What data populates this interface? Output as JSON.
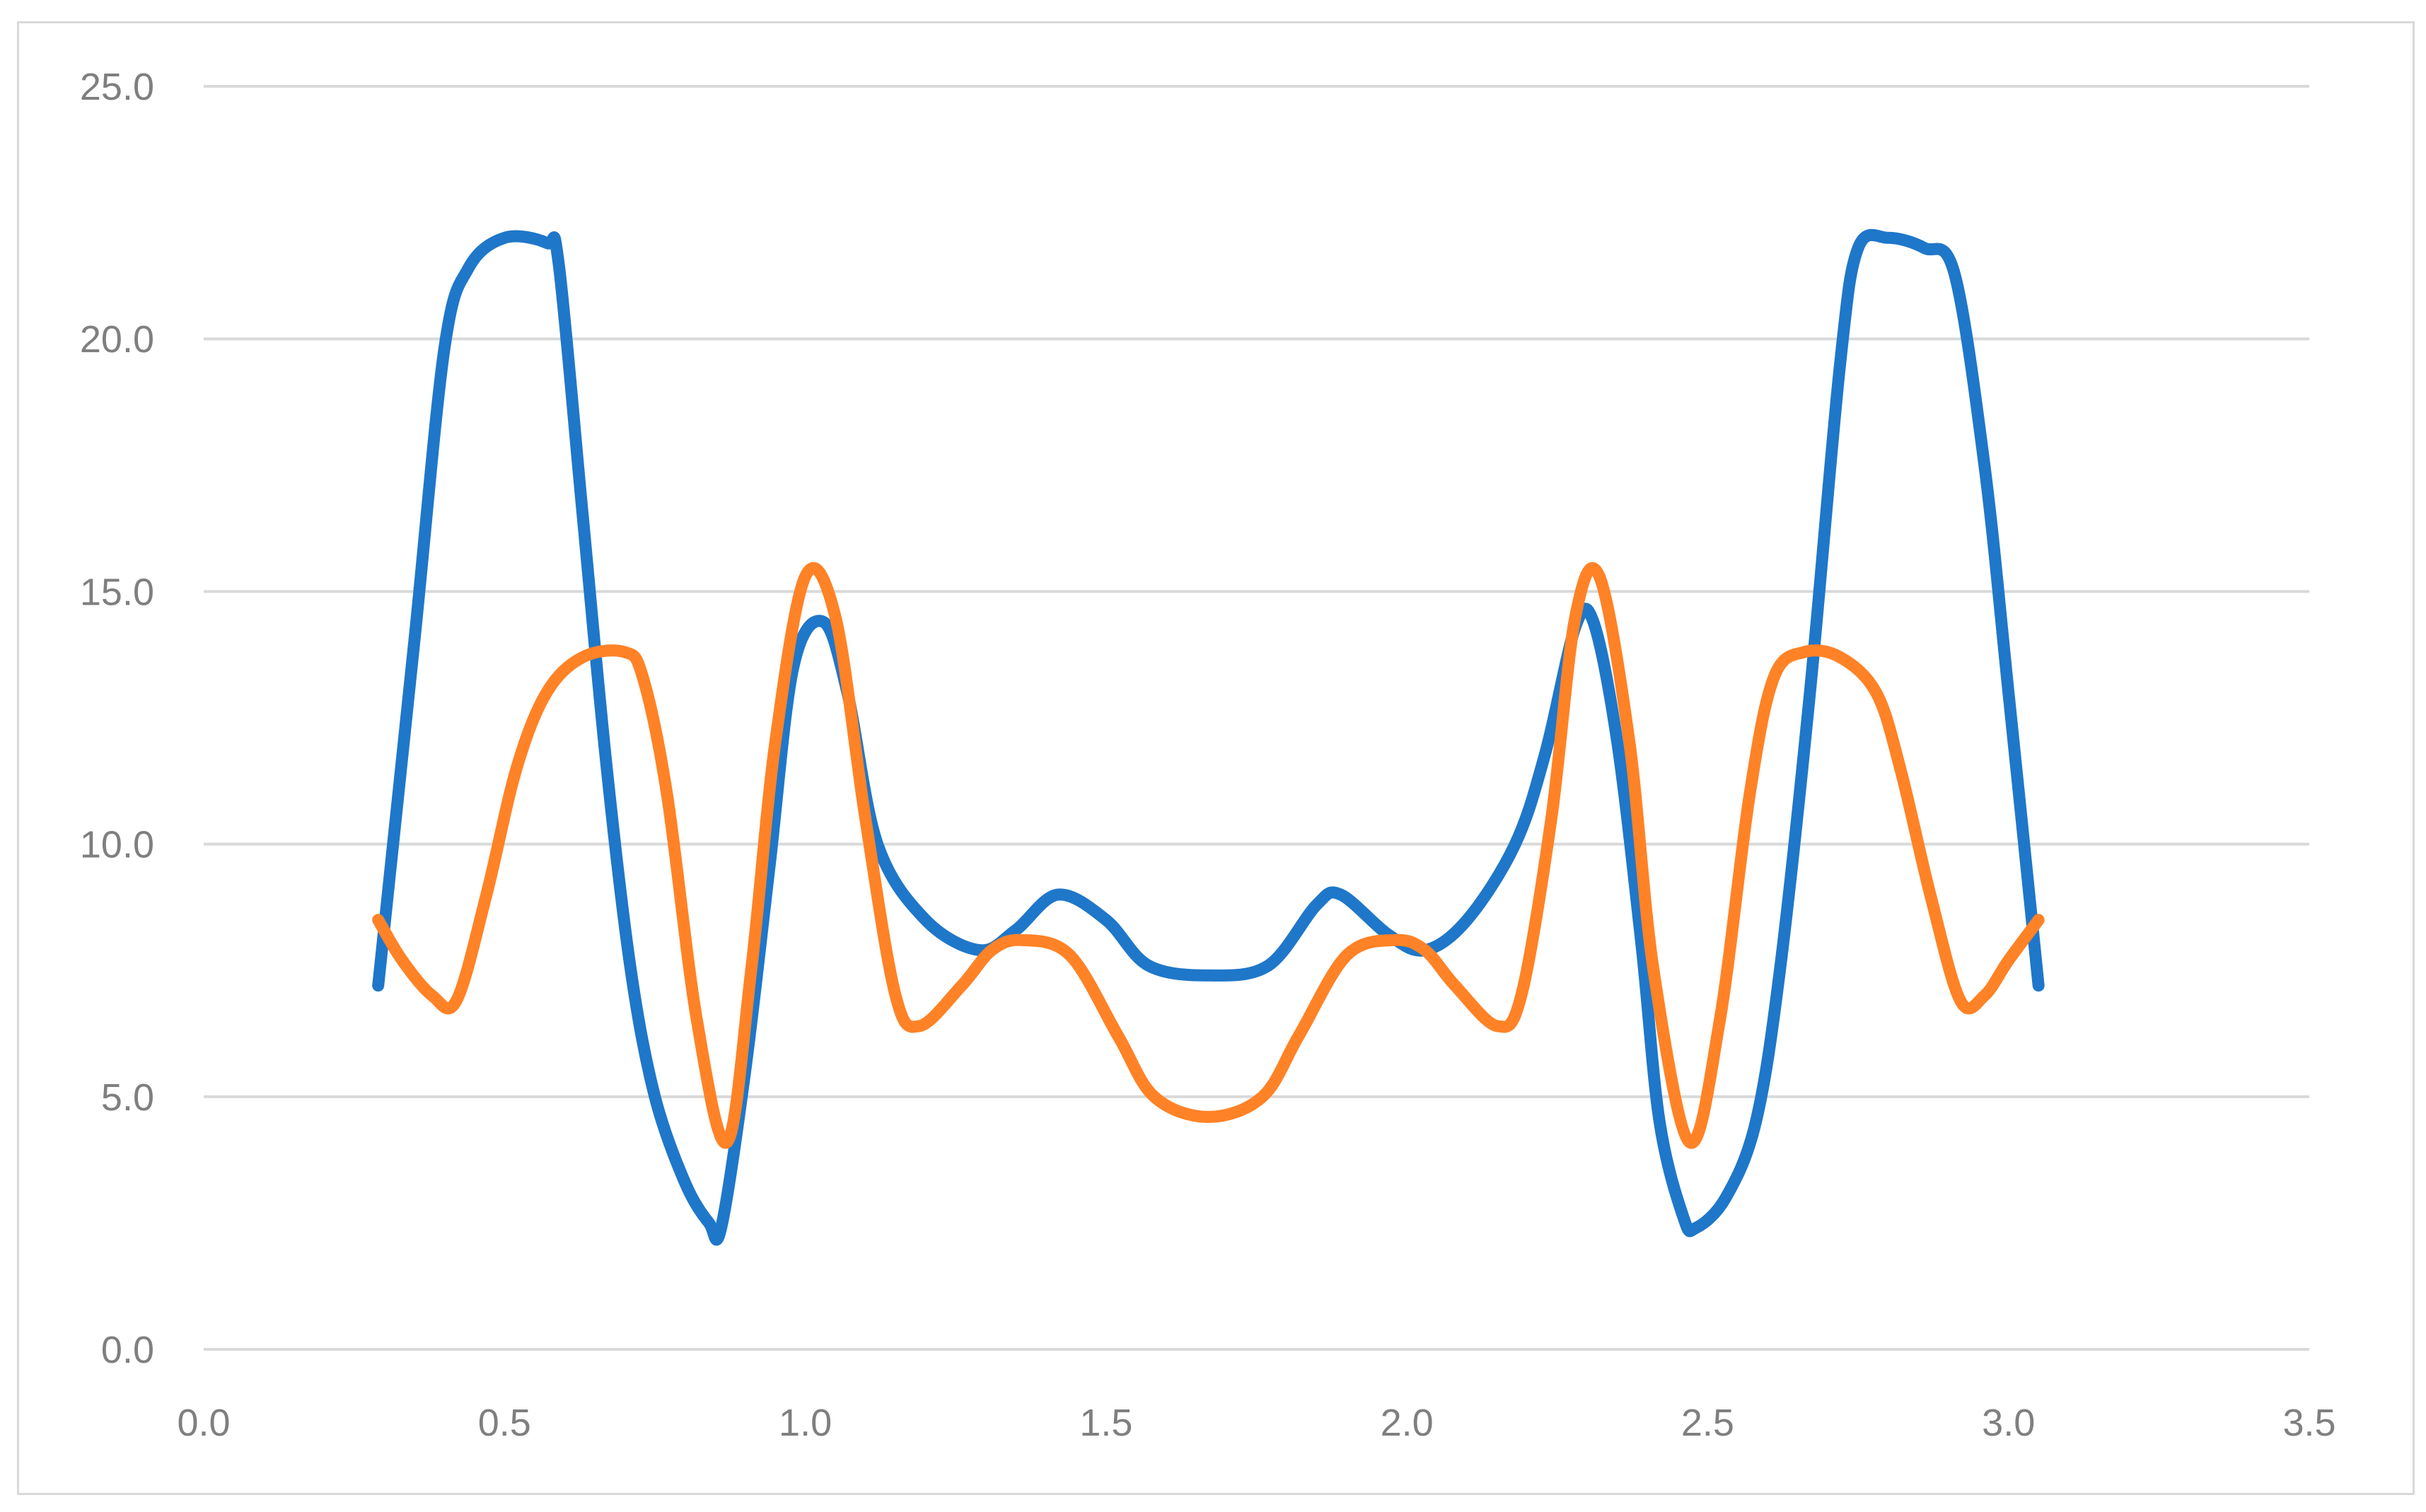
{
  "chart_data": {
    "type": "line",
    "title": "",
    "xlabel": "",
    "ylabel": "",
    "xlim": [
      0,
      3.5
    ],
    "ylim": [
      0,
      25
    ],
    "x_ticks": [
      "0.0",
      "0.5",
      "1.0",
      "1.5",
      "2.0",
      "2.5",
      "3.0",
      "3.5"
    ],
    "y_ticks": [
      "0.0",
      "5.0",
      "10.0",
      "15.0",
      "20.0",
      "25.0"
    ],
    "grid": "horizontal",
    "legend": "none",
    "series": [
      {
        "color": "#1f77c9",
        "points": [
          [
            0.29,
            7.2
          ],
          [
            0.35,
            14.0
          ],
          [
            0.4,
            19.8
          ],
          [
            0.44,
            21.4
          ],
          [
            0.5,
            22.0
          ],
          [
            0.57,
            21.9
          ],
          [
            0.59,
            21.5
          ],
          [
            0.63,
            16.5
          ],
          [
            0.67,
            11.5
          ],
          [
            0.71,
            7.5
          ],
          [
            0.75,
            5.0
          ],
          [
            0.8,
            3.3
          ],
          [
            0.84,
            2.5
          ],
          [
            0.86,
            2.4
          ],
          [
            0.9,
            5.5
          ],
          [
            0.94,
            9.5
          ],
          [
            0.98,
            13.5
          ],
          [
            1.03,
            14.4
          ],
          [
            1.07,
            13.0
          ],
          [
            1.12,
            10.0
          ],
          [
            1.2,
            8.5
          ],
          [
            1.29,
            7.9
          ],
          [
            1.35,
            8.3
          ],
          [
            1.42,
            9.0
          ],
          [
            1.5,
            8.5
          ],
          [
            1.57,
            7.6
          ],
          [
            1.67,
            7.4
          ],
          [
            1.77,
            7.6
          ],
          [
            1.85,
            8.8
          ],
          [
            1.89,
            9.0
          ],
          [
            1.97,
            8.2
          ],
          [
            2.03,
            7.9
          ],
          [
            2.1,
            8.5
          ],
          [
            2.18,
            10.0
          ],
          [
            2.23,
            11.8
          ],
          [
            2.28,
            14.3
          ],
          [
            2.31,
            14.4
          ],
          [
            2.35,
            12.0
          ],
          [
            2.39,
            8.0
          ],
          [
            2.42,
            4.5
          ],
          [
            2.46,
            2.6
          ],
          [
            2.48,
            2.4
          ],
          [
            2.53,
            3.0
          ],
          [
            2.58,
            4.5
          ],
          [
            2.62,
            7.5
          ],
          [
            2.67,
            13.0
          ],
          [
            2.72,
            19.5
          ],
          [
            2.75,
            21.8
          ],
          [
            2.8,
            22.0
          ],
          [
            2.86,
            21.8
          ],
          [
            2.91,
            21.3
          ],
          [
            2.96,
            17.5
          ],
          [
            3.0,
            13.0
          ],
          [
            3.05,
            7.2
          ]
        ]
      },
      {
        "color": "#ff8226",
        "points": [
          [
            0.29,
            8.5
          ],
          [
            0.33,
            7.7
          ],
          [
            0.38,
            7.0
          ],
          [
            0.42,
            6.9
          ],
          [
            0.47,
            9.0
          ],
          [
            0.52,
            11.5
          ],
          [
            0.57,
            13.0
          ],
          [
            0.63,
            13.7
          ],
          [
            0.7,
            13.8
          ],
          [
            0.73,
            13.3
          ],
          [
            0.77,
            11.0
          ],
          [
            0.82,
            6.5
          ],
          [
            0.87,
            4.1
          ],
          [
            0.91,
            7.5
          ],
          [
            0.95,
            12.0
          ],
          [
            1.0,
            15.3
          ],
          [
            1.05,
            14.5
          ],
          [
            1.1,
            10.5
          ],
          [
            1.15,
            7.0
          ],
          [
            1.19,
            6.4
          ],
          [
            1.26,
            7.2
          ],
          [
            1.31,
            7.9
          ],
          [
            1.36,
            8.1
          ],
          [
            1.44,
            7.8
          ],
          [
            1.52,
            6.2
          ],
          [
            1.58,
            5.0
          ],
          [
            1.67,
            4.6
          ],
          [
            1.76,
            5.0
          ],
          [
            1.82,
            6.2
          ],
          [
            1.9,
            7.8
          ],
          [
            1.98,
            8.1
          ],
          [
            2.03,
            7.9
          ],
          [
            2.08,
            7.2
          ],
          [
            2.15,
            6.4
          ],
          [
            2.19,
            7.0
          ],
          [
            2.24,
            10.5
          ],
          [
            2.28,
            14.5
          ],
          [
            2.32,
            15.3
          ],
          [
            2.37,
            12.0
          ],
          [
            2.41,
            7.5
          ],
          [
            2.47,
            4.1
          ],
          [
            2.52,
            6.5
          ],
          [
            2.57,
            11.0
          ],
          [
            2.61,
            13.3
          ],
          [
            2.66,
            13.8
          ],
          [
            2.72,
            13.7
          ],
          [
            2.78,
            13.0
          ],
          [
            2.82,
            11.5
          ],
          [
            2.87,
            9.0
          ],
          [
            2.92,
            6.9
          ],
          [
            2.96,
            7.0
          ],
          [
            3.0,
            7.7
          ],
          [
            3.05,
            8.5
          ]
        ]
      }
    ]
  }
}
